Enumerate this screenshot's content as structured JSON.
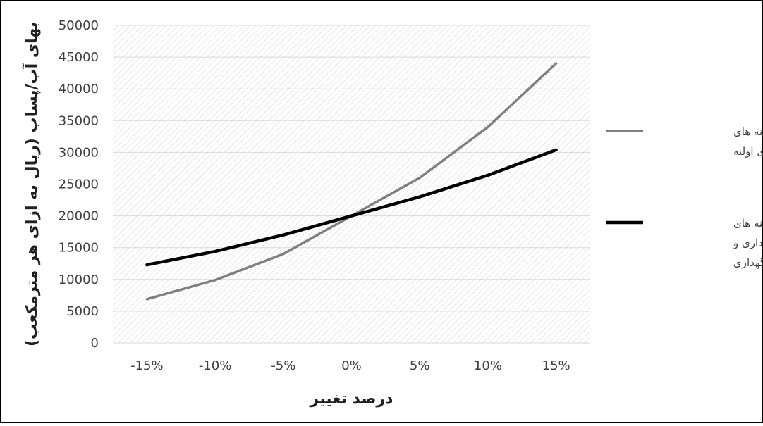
{
  "chart_data": {
    "type": "line",
    "title": "",
    "xlabel": "درصد تغییر",
    "ylabel": "بهای آب/پساب (ریال به ازای هر مترمکعب)",
    "categories": [
      "-15%",
      "-10%",
      "-5%",
      "0%",
      "5%",
      "10%",
      "15%"
    ],
    "ylim": [
      0,
      50000
    ],
    "yticks": [
      0,
      5000,
      10000,
      15000,
      20000,
      25000,
      30000,
      35000,
      40000,
      45000,
      50000
    ],
    "grid": true,
    "legend_position": "right",
    "series": [
      {
        "name": "تغییرات هزینه های سرمایه گذاری اولیه",
        "legend_lines": [
          "تغییرات هزینه های",
          "سرمایه گذاری اولیه"
        ],
        "color": "#808080",
        "values": [
          6900,
          9900,
          14000,
          20000,
          26000,
          34000,
          44000
        ]
      },
      {
        "name": "تغییرات هزینه های بهره برداری و نگهداری",
        "legend_lines": [
          "تغییرات هزینه های",
          "بهره برداری و",
          "نگهداری"
        ],
        "color": "#000000",
        "values": [
          12300,
          14400,
          17000,
          20000,
          23000,
          26400,
          30400
        ]
      }
    ]
  }
}
